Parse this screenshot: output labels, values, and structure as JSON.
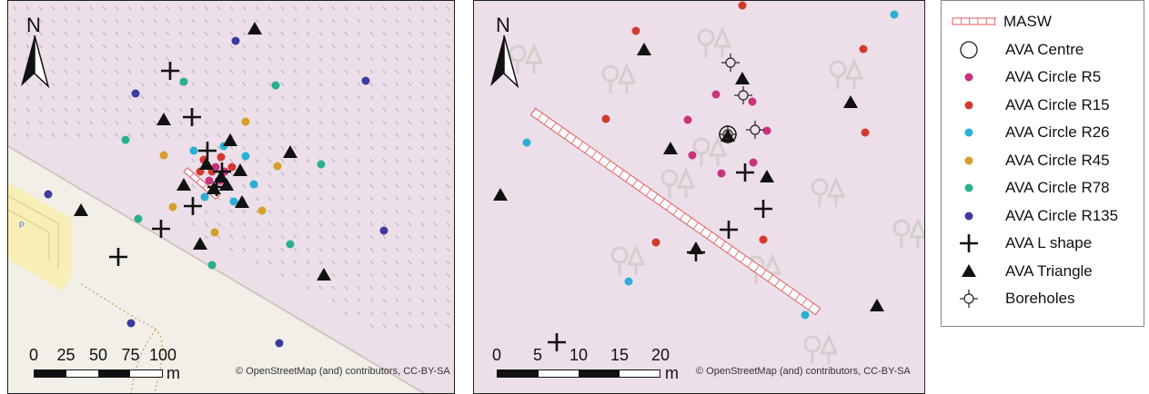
{
  "legend": {
    "items": [
      {
        "key": "masw",
        "label": "MASW",
        "symbol": "masw"
      },
      {
        "key": "centre",
        "label": "AVA Centre",
        "symbol": "open-circle"
      },
      {
        "key": "r5",
        "label": "AVA Circle R5",
        "symbol": "dot",
        "color": "#c8337a"
      },
      {
        "key": "r15",
        "label": "AVA Circle R15",
        "symbol": "dot",
        "color": "#d33a2e"
      },
      {
        "key": "r26",
        "label": "AVA Circle R26",
        "symbol": "dot",
        "color": "#2ab0d4"
      },
      {
        "key": "r45",
        "label": "AVA Circle R45",
        "symbol": "dot",
        "color": "#d4a02a"
      },
      {
        "key": "r78",
        "label": "AVA Circle R78",
        "symbol": "dot",
        "color": "#27b08c"
      },
      {
        "key": "r135",
        "label": "AVA Circle R135",
        "symbol": "dot",
        "color": "#3c3c9e"
      },
      {
        "key": "lshape",
        "label": "AVA L shape",
        "symbol": "plus"
      },
      {
        "key": "triangle",
        "label": "AVA Triangle",
        "symbol": "triangle"
      },
      {
        "key": "boreholes",
        "label": "Boreholes",
        "symbol": "borehole"
      }
    ]
  },
  "map_left": {
    "north_label": "N",
    "scale_labels": [
      "0",
      "25",
      "50",
      "75",
      "100"
    ],
    "scale_unit": "m",
    "attribution": "© OpenStreetMap (and) contributors, CC-BY-SA",
    "parking_label": "P"
  },
  "map_right": {
    "north_label": "N",
    "scale_labels": [
      "0",
      "5",
      "10",
      "15",
      "20"
    ],
    "scale_unit": "m",
    "attribution": "© OpenStreetMap (and) contributors, CC-BY-SA"
  },
  "colors": {
    "background": "#ecdfe9",
    "road_area": "#f2efe9",
    "parking": "#f7efb7",
    "road_edge": "#cfc7bf",
    "path": "#c9a04a",
    "masw": "#e05a5a"
  }
}
